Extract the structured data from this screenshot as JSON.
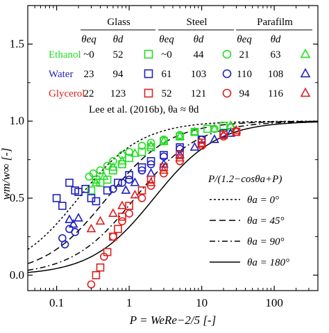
{
  "chart_data": {
    "type": "scatter",
    "x_scale": "log",
    "xlim": [
      0.04,
      400
    ],
    "ylim": [
      -0.1,
      1.75
    ],
    "x_ticks": [
      0.1,
      1,
      10,
      100
    ],
    "x_tick_labels": [
      "0.1",
      "1",
      "10",
      "100"
    ],
    "y_ticks": [
      0.0,
      0.5,
      1.0,
      1.5
    ],
    "y_tick_labels": [
      "0.0",
      "0.5",
      "1.0",
      "1.5"
    ],
    "xlabel": "P = WeRe−2/5 [-]",
    "ylabel": "wm/w∞ [-]",
    "grid": false,
    "table": {
      "groups": [
        {
          "name": "Glass",
          "marker": "square"
        },
        {
          "name": "Steel",
          "marker": "circle"
        },
        {
          "name": "Parafilm",
          "marker": "triangle"
        }
      ],
      "headers": [
        "θeq",
        "θd"
      ],
      "rows": [
        {
          "liquid": "Ethanol",
          "color": "#22dd22",
          "values": [
            [
              "~0",
              "52"
            ],
            [
              "~0",
              "44"
            ],
            [
              "21",
              "63"
            ]
          ]
        },
        {
          "liquid": "Water",
          "color": "#1f1fbf",
          "values": [
            [
              "23",
              "94"
            ],
            [
              "61",
              "103"
            ],
            [
              "110",
              "108"
            ]
          ]
        },
        {
          "liquid": "Glycerol",
          "color": "#dd1f1f",
          "values": [
            [
              "22",
              "123"
            ],
            [
              "52",
              "121"
            ],
            [
              "94",
              "116"
            ]
          ]
        }
      ]
    },
    "model_title": "P/(1.2−cosθa+P)",
    "model_curves": [
      {
        "theta_a": 0,
        "label": "θa =    0°",
        "dash": "short-dash"
      },
      {
        "theta_a": 45,
        "label": "θa =   45°",
        "dash": "long-dash"
      },
      {
        "theta_a": 90,
        "label": "θa =   90°",
        "dash": "dash-dot"
      },
      {
        "theta_a": 180,
        "label": "θa = 180°",
        "dash": "solid"
      }
    ],
    "reference_note": "Lee et al. (2016b), θa ≈ θd",
    "series": [
      {
        "name": "Ethanol",
        "color": "#22dd22",
        "marker": "square",
        "points": [
          [
            0.3,
            0.55
          ],
          [
            0.35,
            0.62
          ],
          [
            0.4,
            0.6
          ],
          [
            0.5,
            0.62
          ],
          [
            0.6,
            0.68
          ],
          [
            0.8,
            0.72
          ],
          [
            1.0,
            0.76
          ],
          [
            1.5,
            0.8
          ],
          [
            2.0,
            0.83
          ],
          [
            3.0,
            0.87
          ],
          [
            5.0,
            0.9
          ],
          [
            8.0,
            0.93
          ],
          [
            12.0,
            0.95
          ],
          [
            20.0,
            0.97
          ]
        ]
      },
      {
        "name": "Ethanol",
        "color": "#22dd22",
        "marker": "circle",
        "points": [
          [
            0.28,
            0.64
          ],
          [
            0.32,
            0.66
          ],
          [
            0.4,
            0.68
          ],
          [
            0.5,
            0.71
          ],
          [
            0.6,
            0.74
          ],
          [
            0.8,
            0.78
          ],
          [
            1.0,
            0.8
          ],
          [
            1.5,
            0.84
          ],
          [
            2.0,
            0.86
          ],
          [
            3.0,
            0.88
          ],
          [
            5.0,
            0.91
          ],
          [
            8.0,
            0.93
          ],
          [
            15.0,
            0.95
          ],
          [
            25.0,
            0.96
          ]
        ]
      },
      {
        "name": "Ethanol",
        "color": "#22dd22",
        "marker": "triangle",
        "points": [
          [
            0.35,
            0.6
          ],
          [
            0.45,
            0.64
          ],
          [
            0.6,
            0.7
          ],
          [
            0.8,
            0.74
          ],
          [
            1.2,
            0.79
          ],
          [
            2.0,
            0.84
          ],
          [
            3.0,
            0.87
          ],
          [
            5.0,
            0.9
          ],
          [
            8.0,
            0.93
          ],
          [
            15.0,
            0.95
          ],
          [
            25.0,
            0.97
          ]
        ]
      },
      {
        "name": "Water",
        "color": "#1f1fbf",
        "marker": "square",
        "points": [
          [
            0.1,
            0.5
          ],
          [
            0.12,
            0.45
          ],
          [
            0.15,
            0.6
          ],
          [
            0.18,
            0.55
          ],
          [
            0.2,
            0.54
          ],
          [
            0.25,
            0.56
          ],
          [
            0.3,
            0.5
          ],
          [
            0.35,
            0.48
          ],
          [
            0.5,
            0.55
          ],
          [
            0.7,
            0.6
          ],
          [
            1.0,
            0.65
          ],
          [
            1.5,
            0.7
          ],
          [
            2.0,
            0.74
          ],
          [
            3.0,
            0.78
          ],
          [
            5.0,
            0.83
          ],
          [
            10.0,
            0.88
          ],
          [
            20.0,
            0.92
          ]
        ]
      },
      {
        "name": "Water",
        "color": "#1f1fbf",
        "marker": "circle",
        "points": [
          [
            0.12,
            0.24
          ],
          [
            0.13,
            0.2
          ],
          [
            0.15,
            0.3
          ],
          [
            0.18,
            0.28
          ],
          [
            0.6,
            0.56
          ],
          [
            0.8,
            0.6
          ],
          [
            1.0,
            0.62
          ],
          [
            1.5,
            0.68
          ],
          [
            2.0,
            0.72
          ],
          [
            3.0,
            0.77
          ],
          [
            5.0,
            0.82
          ],
          [
            10.0,
            0.88
          ]
        ]
      },
      {
        "name": "Water",
        "color": "#1f1fbf",
        "marker": "triangle",
        "points": [
          [
            0.15,
            0.36
          ],
          [
            0.17,
            0.33
          ],
          [
            0.2,
            0.37
          ],
          [
            0.9,
            0.55
          ],
          [
            1.2,
            0.6
          ],
          [
            2.0,
            0.66
          ],
          [
            3.0,
            0.72
          ],
          [
            5.0,
            0.78
          ],
          [
            8.0,
            0.83
          ],
          [
            15.0,
            0.88
          ],
          [
            25.0,
            0.92
          ]
        ]
      },
      {
        "name": "Glycerol",
        "color": "#dd1f1f",
        "marker": "square",
        "points": [
          [
            0.35,
            0.0
          ],
          [
            0.4,
            0.05
          ],
          [
            0.5,
            0.15
          ],
          [
            0.6,
            0.25
          ],
          [
            0.7,
            0.3
          ],
          [
            0.8,
            0.38
          ],
          [
            1.0,
            0.45
          ],
          [
            1.5,
            0.55
          ],
          [
            2.0,
            0.62
          ],
          [
            3.0,
            0.7
          ],
          [
            5.0,
            0.78
          ],
          [
            10.0,
            0.86
          ],
          [
            20.0,
            0.91
          ],
          [
            30.0,
            0.93
          ]
        ]
      },
      {
        "name": "Glycerol",
        "color": "#dd1f1f",
        "marker": "circle",
        "points": [
          [
            0.3,
            -0.06
          ],
          [
            0.45,
            0.12
          ],
          [
            0.6,
            0.25
          ],
          [
            0.8,
            0.35
          ],
          [
            1.0,
            0.4
          ],
          [
            1.5,
            0.5
          ],
          [
            2.0,
            0.58
          ],
          [
            3.0,
            0.66
          ],
          [
            5.0,
            0.74
          ],
          [
            10.0,
            0.84
          ],
          [
            20.0,
            0.9
          ],
          [
            30.0,
            0.93
          ]
        ]
      },
      {
        "name": "Glycerol",
        "color": "#dd1f1f",
        "marker": "triangle",
        "points": [
          [
            0.3,
            0.3
          ],
          [
            0.4,
            0.35
          ],
          [
            0.6,
            0.4
          ],
          [
            0.8,
            0.45
          ],
          [
            1.2,
            0.52
          ],
          [
            2.0,
            0.6
          ],
          [
            3.0,
            0.68
          ],
          [
            5.0,
            0.76
          ],
          [
            10.0,
            0.85
          ],
          [
            20.0,
            0.91
          ],
          [
            30.0,
            0.94
          ]
        ]
      }
    ]
  }
}
